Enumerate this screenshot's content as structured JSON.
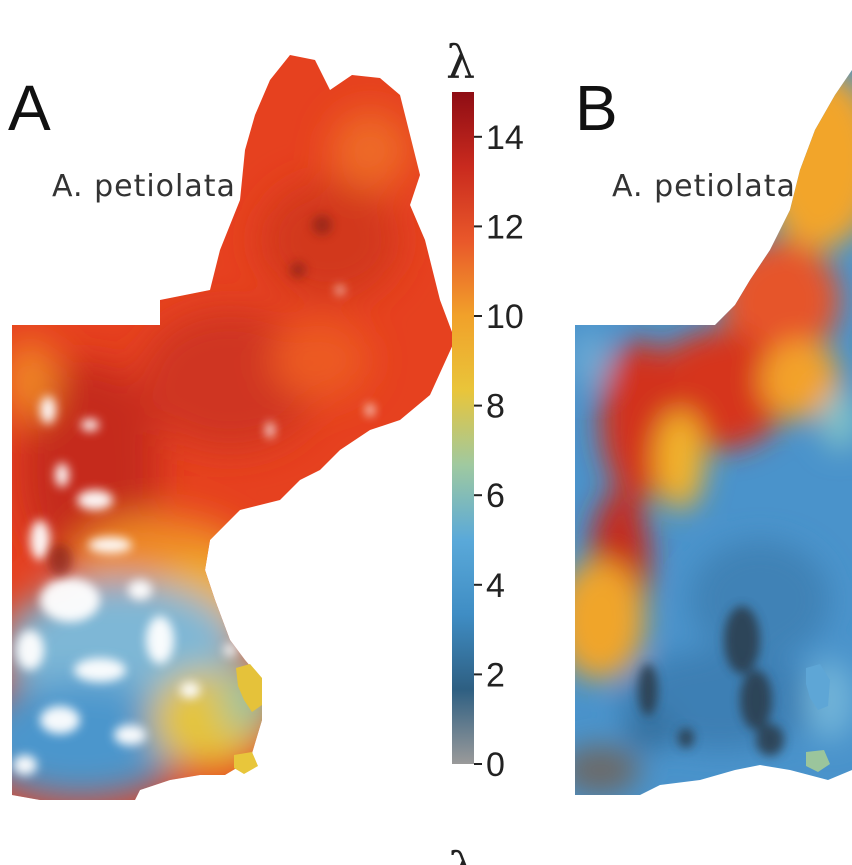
{
  "panels": [
    {
      "letter": "A",
      "species": "A.  petiolata"
    },
    {
      "letter": "B",
      "species": "A.  petiolata"
    }
  ],
  "colorbar": {
    "title": "λ",
    "ticks": [
      "14",
      "12",
      "10",
      "8",
      "6",
      "4",
      "2",
      "0"
    ],
    "tick_values": [
      14,
      12,
      10,
      8,
      6,
      4,
      2,
      0
    ],
    "min": 0,
    "max": 15,
    "colors": [
      "#9a9a9a",
      "#2e5f82",
      "#3f8dc4",
      "#5aa9d9",
      "#9fc9a0",
      "#e9c53a",
      "#f1a12a",
      "#e9582a",
      "#c92a1e",
      "#8e0d14"
    ]
  },
  "bottom_mark": "λ",
  "colors": {
    "high": "#e8421f",
    "very_high": "#b5261a",
    "mid": "#f0a020",
    "low": "#4a90c8",
    "gap": "#ffffff",
    "zero": "#6a6a6a"
  }
}
